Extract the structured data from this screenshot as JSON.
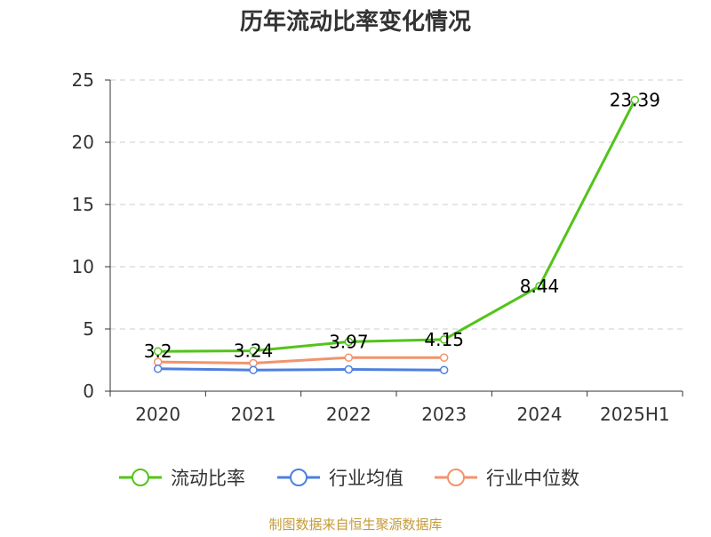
{
  "chart_data": {
    "type": "line",
    "title": "历年流动比率变化情况",
    "categories": [
      "2020",
      "2021",
      "2022",
      "2023",
      "2024",
      "2025H1"
    ],
    "ylim": [
      0,
      25
    ],
    "yticks": [
      0,
      5,
      10,
      15,
      20,
      25
    ],
    "grid": true,
    "legend_placement": "bottom",
    "series": [
      {
        "name": "流动比率",
        "color": "#52c41a",
        "values": [
          3.2,
          3.24,
          3.97,
          4.15,
          8.44,
          23.39
        ],
        "labels": [
          "3.2",
          "3.24",
          "3.97",
          "4.15",
          "8.44",
          "23.39"
        ]
      },
      {
        "name": "行业均值",
        "color": "#4e7fe0",
        "values": [
          1.8,
          1.7,
          1.75,
          1.7,
          null,
          null
        ]
      },
      {
        "name": "行业中位数",
        "color": "#f3936b",
        "values": [
          2.35,
          2.25,
          2.7,
          2.7,
          null,
          null
        ]
      }
    ],
    "source": "制图数据来自恒生聚源数据库"
  }
}
